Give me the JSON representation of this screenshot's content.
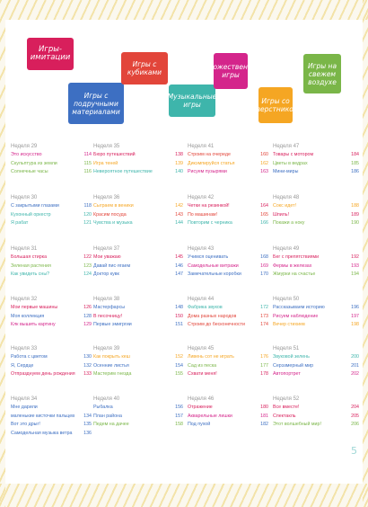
{
  "legend": [
    {
      "label": "Игры-имитации",
      "color": "#d81f5c"
    },
    {
      "label": "Игры с подручными материалами",
      "color": "#3d6fc2"
    },
    {
      "label": "Игры с кубиками",
      "color": "#e2453a"
    },
    {
      "label": "Музыкальные игры",
      "color": "#3eb5ab"
    },
    {
      "label": "Художественные игры",
      "color": "#d4258b"
    },
    {
      "label": "Игры со сверстником",
      "color": "#f5a623"
    },
    {
      "label": "Игры на свежем воздухе",
      "color": "#7ab648"
    }
  ],
  "weeks": [
    {
      "title": "Неделя 29",
      "items": [
        {
          "name": "Это искусство",
          "page": "114",
          "color": "#d4258b"
        },
        {
          "name": "Скульптура из земли",
          "page": "115",
          "color": "#7ab648"
        },
        {
          "name": "Солнечные часы",
          "page": "116",
          "color": "#7ab648"
        }
      ]
    },
    {
      "title": "Неделя 30",
      "items": [
        {
          "name": "С закрытыми глазами",
          "page": "118",
          "color": "#3d6fc2"
        },
        {
          "name": "Кухонный оркестр",
          "page": "120",
          "color": "#3eb5ab"
        },
        {
          "name": "Я рабат",
          "page": "121",
          "color": "#3eb5ab"
        }
      ]
    },
    {
      "title": "Неделя 31",
      "items": [
        {
          "name": "Большая стирка",
          "page": "122",
          "color": "#d81f5c"
        },
        {
          "name": "Зеленая растения",
          "page": "123",
          "color": "#7ab648"
        },
        {
          "name": "Как увидеть сны?",
          "page": "124",
          "color": "#3eb5ab"
        }
      ]
    },
    {
      "title": "Неделя 32",
      "items": [
        {
          "name": "Мои первые машины",
          "page": "126",
          "color": "#d81f5c"
        },
        {
          "name": "Моя коллекция",
          "page": "128",
          "color": "#3d6fc2"
        },
        {
          "name": "Клк вышить картину",
          "page": "129",
          "color": "#d4258b"
        }
      ]
    },
    {
      "title": "Неделя 33",
      "items": [
        {
          "name": "Работа с цветом",
          "page": "130",
          "color": "#3d6fc2"
        },
        {
          "name": "Я, Сердце",
          "page": "132",
          "color": "#3d6fc2"
        },
        {
          "name": "Отпразднуем день рождения",
          "page": "133",
          "color": "#d81f5c"
        }
      ]
    },
    {
      "title": "Неделя 34",
      "items": [
        {
          "name": "Мне дарили",
          "page": "",
          "color": "#3d6fc2"
        },
        {
          "name": "маленькие кисточки пальцев",
          "page": "134",
          "color": "#3d6fc2"
        },
        {
          "name": "Вот это дрыг!",
          "page": "135",
          "color": "#3d6fc2"
        },
        {
          "name": "Самодельная музыка ветра",
          "page": "136",
          "color": "#3d6fc2"
        }
      ]
    },
    {
      "title": "Неделя 35",
      "items": [
        {
          "name": "Бюро путешествий",
          "page": "138",
          "color": "#d81f5c"
        },
        {
          "name": "Игра теней",
          "page": "139",
          "color": "#f5a623"
        },
        {
          "name": "Невероятное путешествие",
          "page": "140",
          "color": "#3eb5ab"
        }
      ]
    },
    {
      "title": "Неделя 36",
      "items": [
        {
          "name": "Сыграем в веники",
          "page": "142",
          "color": "#f5a623"
        },
        {
          "name": "Красим посуда",
          "page": "143",
          "color": "#e2453a"
        },
        {
          "name": "Чувства и музыка",
          "page": "144",
          "color": "#3eb5ab"
        }
      ]
    },
    {
      "title": "Неделя 37",
      "items": [
        {
          "name": "Мои уважаю",
          "page": "145",
          "color": "#d81f5c"
        },
        {
          "name": "Давай пис·ягаем",
          "page": "146",
          "color": "#3d6fc2"
        },
        {
          "name": "Доктор кувк",
          "page": "147",
          "color": "#3d6fc2"
        }
      ]
    },
    {
      "title": "Неделя 38",
      "items": [
        {
          "name": "Мастерфарсы",
          "page": "148",
          "color": "#3d6fc2"
        },
        {
          "name": "В песочницу!",
          "page": "150",
          "color": "#d81f5c"
        },
        {
          "name": "Первые эмигргии",
          "page": "151",
          "color": "#3d6fc2"
        }
      ]
    },
    {
      "title": "Неделя 39",
      "items": [
        {
          "name": "Как покрыть кеш",
          "page": "152",
          "color": "#f5a623"
        },
        {
          "name": "Осенние листья",
          "page": "154",
          "color": "#3d6fc2"
        },
        {
          "name": "Мастерим гнезда",
          "page": "155",
          "color": "#7ab648"
        }
      ]
    },
    {
      "title": "Неделя 40",
      "items": [
        {
          "name": "Рыбалка",
          "page": "156",
          "color": "#3d6fc2"
        },
        {
          "name": "План района",
          "page": "157",
          "color": "#3d6fc2"
        },
        {
          "name": "Педем на дачее",
          "page": "158",
          "color": "#7ab648"
        }
      ]
    },
    {
      "title": "Неделя 41",
      "items": [
        {
          "name": "Строим на очереде",
          "page": "160",
          "color": "#e2453a"
        },
        {
          "name": "Дикэмпируйся статья",
          "page": "162",
          "color": "#f5a623"
        },
        {
          "name": "Рисуем пузырями",
          "page": "163",
          "color": "#d4258b"
        }
      ]
    },
    {
      "title": "Неделя 42",
      "items": [
        {
          "name": "Четки на резинкой!",
          "page": "164",
          "color": "#d81f5c"
        },
        {
          "name": "По машинам!",
          "page": "165",
          "color": "#e2453a"
        },
        {
          "name": "Повторим с черника",
          "page": "166",
          "color": "#3eb5ab"
        }
      ]
    },
    {
      "title": "Неделя 43",
      "items": [
        {
          "name": "Учимся оценивать",
          "page": "168",
          "color": "#3d6fc2"
        },
        {
          "name": "Самодельные витражи",
          "page": "169",
          "color": "#d4258b"
        },
        {
          "name": "Замечательные коробки",
          "page": "170",
          "color": "#3d6fc2"
        }
      ]
    },
    {
      "title": "Неделя 44",
      "items": [
        {
          "name": "Фабрика звуков",
          "page": "172",
          "color": "#3eb5ab"
        },
        {
          "name": "Дома разных народов",
          "page": "173",
          "color": "#e2453a"
        },
        {
          "name": "Строим до бесконечности",
          "page": "174",
          "color": "#e2453a"
        }
      ]
    },
    {
      "title": "Неделя 45",
      "items": [
        {
          "name": "Ливень сот не играть",
          "page": "176",
          "color": "#f5a623"
        },
        {
          "name": "Сад из песка",
          "page": "177",
          "color": "#7ab648"
        },
        {
          "name": "Схвати меня!",
          "page": "178",
          "color": "#d81f5c"
        }
      ]
    },
    {
      "title": "Неделя 46",
      "items": [
        {
          "name": "Отражение",
          "page": "180",
          "color": "#d81f5c"
        },
        {
          "name": "Акварельные лишки",
          "page": "181",
          "color": "#d4258b"
        },
        {
          "name": "Под пухой",
          "page": "182",
          "color": "#3d6fc2"
        }
      ]
    },
    {
      "title": "Неделя 47",
      "items": [
        {
          "name": "Товары с мотором",
          "page": "184",
          "color": "#d81f5c"
        },
        {
          "name": "Цветы в ведрах",
          "page": "185",
          "color": "#7ab648"
        },
        {
          "name": "Мини-миры",
          "page": "186",
          "color": "#3d6fc2"
        }
      ]
    },
    {
      "title": "Неделя 48",
      "items": [
        {
          "name": "Сокс идет!",
          "page": "188",
          "color": "#f5a623"
        },
        {
          "name": "Шпиль!",
          "page": "189",
          "color": "#d81f5c"
        },
        {
          "name": "Покажи а ноку",
          "page": "190",
          "color": "#7ab648"
        }
      ]
    },
    {
      "title": "Неделя 49",
      "items": [
        {
          "name": "Бег с препятствиями",
          "page": "192",
          "color": "#d81f5c"
        },
        {
          "name": "Фермы в железах",
          "page": "193",
          "color": "#d4258b"
        },
        {
          "name": "Жмурки на счастье",
          "page": "194",
          "color": "#7ab648"
        }
      ]
    },
    {
      "title": "Неделя 50",
      "items": [
        {
          "name": "Рассказываем историю",
          "page": "196",
          "color": "#3d6fc2"
        },
        {
          "name": "Рисуем наблюдение",
          "page": "197",
          "color": "#d4258b"
        },
        {
          "name": "Вечер стихиев",
          "page": "198",
          "color": "#f5a623"
        }
      ]
    },
    {
      "title": "Неделя 51",
      "items": [
        {
          "name": "Звуковой зелень",
          "page": "200",
          "color": "#3eb5ab"
        },
        {
          "name": "Серэзмерный мир",
          "page": "201",
          "color": "#3d6fc2"
        },
        {
          "name": "Автопортрет",
          "page": "202",
          "color": "#d4258b"
        }
      ]
    },
    {
      "title": "Неделя 52",
      "items": [
        {
          "name": "Все вместе!",
          "page": "204",
          "color": "#d81f5c"
        },
        {
          "name": "Спектакль",
          "page": "205",
          "color": "#d81f5c"
        },
        {
          "name": "Этот волшебный мир!",
          "page": "206",
          "color": "#7ab648"
        }
      ]
    }
  ],
  "page_number": "5"
}
